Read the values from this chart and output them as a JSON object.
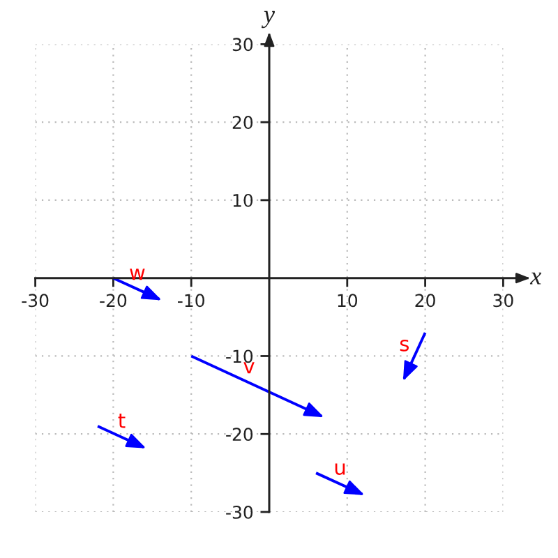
{
  "chart_data": {
    "type": "line",
    "xlabel": "x",
    "ylabel": "y",
    "xlim": [
      -30,
      30
    ],
    "ylim": [
      -30,
      30
    ],
    "xticks": [
      -30,
      -20,
      -10,
      10,
      20,
      30
    ],
    "yticks": [
      -30,
      -20,
      -10,
      10,
      20,
      30
    ],
    "grid": true,
    "line_style": "solid",
    "series": [
      {
        "name": "s",
        "color": "#0000ff",
        "x": [
          20,
          17.3
        ],
        "values": [
          -7,
          -12.9
        ]
      },
      {
        "name": "t",
        "color": "#0000ff",
        "x": [
          -22,
          -16.1
        ],
        "values": [
          -19,
          -21.7
        ]
      },
      {
        "name": "u",
        "color": "#0000ff",
        "x": [
          6,
          11.9
        ],
        "values": [
          -25,
          -27.7
        ]
      },
      {
        "name": "v",
        "color": "#0000ff",
        "x": [
          -10,
          6.7
        ],
        "values": [
          -10,
          -17.7
        ]
      },
      {
        "name": "w",
        "color": "#0000ff",
        "x": [
          -20,
          -14.1
        ],
        "values": [
          0,
          -2.7
        ]
      }
    ]
  }
}
